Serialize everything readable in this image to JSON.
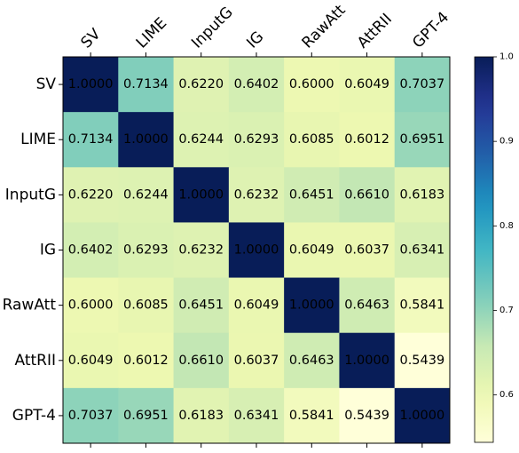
{
  "chart_data": {
    "type": "heatmap",
    "title": "",
    "xlabel": "",
    "ylabel": "",
    "x_labels": [
      "SV",
      "LIME",
      "InputG",
      "IG",
      "RawAtt",
      "AttRII",
      "GPT-4"
    ],
    "y_labels": [
      "SV",
      "LIME",
      "InputG",
      "IG",
      "RawAtt",
      "AttRII",
      "GPT-4"
    ],
    "values": [
      [
        1.0,
        0.7134,
        0.622,
        0.6402,
        0.6,
        0.6049,
        0.7037
      ],
      [
        0.7134,
        1.0,
        0.6244,
        0.6293,
        0.6085,
        0.6012,
        0.6951
      ],
      [
        0.622,
        0.6244,
        1.0,
        0.6232,
        0.6451,
        0.661,
        0.6183
      ],
      [
        0.6402,
        0.6293,
        0.6232,
        1.0,
        0.6049,
        0.6037,
        0.6341
      ],
      [
        0.6,
        0.6085,
        0.6451,
        0.6049,
        1.0,
        0.6463,
        0.5841
      ],
      [
        0.6049,
        0.6012,
        0.661,
        0.6037,
        0.6463,
        1.0,
        0.5439
      ],
      [
        0.7037,
        0.6951,
        0.6183,
        0.6341,
        0.5841,
        0.5439,
        1.0
      ]
    ],
    "value_labels": [
      [
        "1.0000",
        "0.7134",
        "0.6220",
        "0.6402",
        "0.6000",
        "0.6049",
        "0.7037"
      ],
      [
        "0.7134",
        "1.0000",
        "0.6244",
        "0.6293",
        "0.6085",
        "0.6012",
        "0.6951"
      ],
      [
        "0.6220",
        "0.6244",
        "1.0000",
        "0.6232",
        "0.6451",
        "0.6610",
        "0.6183"
      ],
      [
        "0.6402",
        "0.6293",
        "0.6232",
        "1.0000",
        "0.6049",
        "0.6037",
        "0.6341"
      ],
      [
        "0.6000",
        "0.6085",
        "0.6451",
        "0.6049",
        "1.0000",
        "0.6463",
        "0.5841"
      ],
      [
        "0.6049",
        "0.6012",
        "0.6610",
        "0.6037",
        "0.6463",
        "1.0000",
        "0.5439"
      ],
      [
        "0.7037",
        "0.6951",
        "0.6183",
        "0.6341",
        "0.5841",
        "0.5439",
        "1.0000"
      ]
    ],
    "colormap": "YlGnBu",
    "colorbar": {
      "range": [
        0.5439,
        1.0
      ],
      "ticks": [
        0.6,
        0.7,
        0.8,
        0.9,
        1.0
      ],
      "tick_labels": [
        "0.6",
        "0.7",
        "0.8",
        "0.9",
        "1.0"
      ]
    },
    "x_labels_position": "top",
    "x_label_rotation_deg": -45,
    "grid": false
  }
}
